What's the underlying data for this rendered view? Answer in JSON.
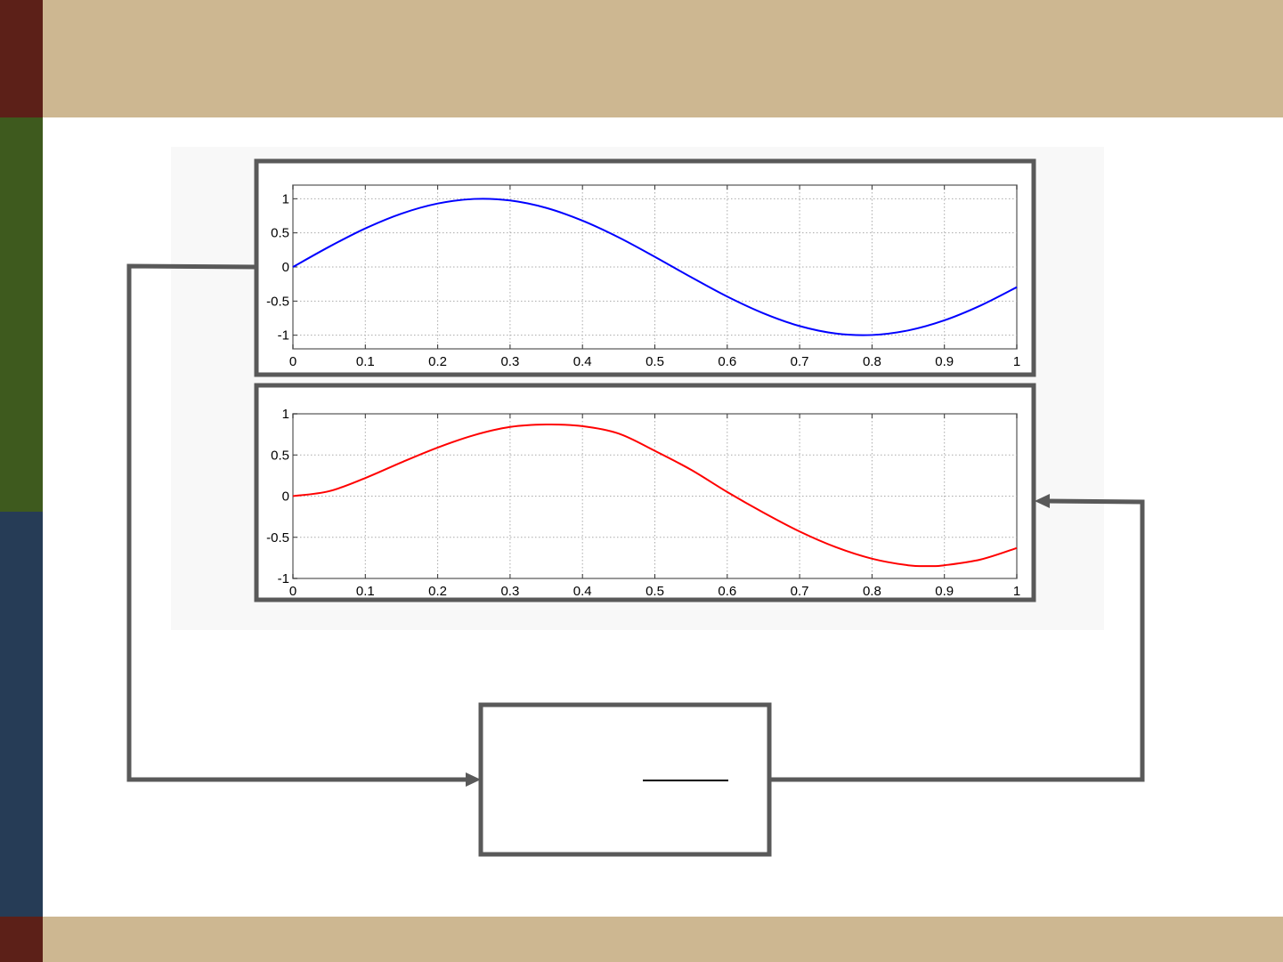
{
  "theme": {
    "band_color": "#CDB791",
    "side_colors": [
      "#5C2018",
      "#3E5A1E",
      "#263C56",
      "#5C2018"
    ],
    "frame_color": "#595959"
  },
  "chart_data": [
    {
      "type": "line",
      "grid": true,
      "xlim": [
        0,
        1
      ],
      "ylim": [
        -1.2,
        1.2
      ],
      "x_ticks": [
        "0",
        "0.1",
        "0.2",
        "0.3",
        "0.4",
        "0.5",
        "0.6",
        "0.7",
        "0.8",
        "0.9",
        "1"
      ],
      "y_ticks": [
        "1",
        "0.5",
        "0",
        "-0.5",
        "-1"
      ],
      "series": [
        {
          "color": "#0000FF",
          "x": [
            0,
            0.05,
            0.1,
            0.15,
            0.2,
            0.25,
            0.3,
            0.35,
            0.4,
            0.45,
            0.5,
            0.55,
            0.6,
            0.65,
            0.7,
            0.75,
            0.8,
            0.85,
            0.9,
            0.95,
            1
          ],
          "y": [
            0,
            0.296,
            0.565,
            0.782,
            0.93,
            0.997,
            0.975,
            0.866,
            0.679,
            0.434,
            0.149,
            -0.149,
            -0.434,
            -0.679,
            -0.866,
            -0.975,
            -0.997,
            -0.93,
            -0.782,
            -0.565,
            -0.296
          ]
        }
      ]
    },
    {
      "type": "line",
      "grid": true,
      "xlim": [
        0,
        1
      ],
      "ylim": [
        -1,
        1
      ],
      "x_ticks": [
        "0",
        "0.1",
        "0.2",
        "0.3",
        "0.4",
        "0.5",
        "0.6",
        "0.7",
        "0.8",
        "0.9",
        "1"
      ],
      "y_ticks": [
        "1",
        "0.5",
        "0",
        "-0.5",
        "-1"
      ],
      "series": [
        {
          "color": "#FF0000",
          "x": [
            0,
            0.05,
            0.1,
            0.15,
            0.2,
            0.25,
            0.3,
            0.35,
            0.4,
            0.45,
            0.5,
            0.55,
            0.6,
            0.65,
            0.7,
            0.75,
            0.8,
            0.85,
            0.88,
            0.9,
            0.95,
            1
          ],
          "y": [
            0,
            0.06,
            0.22,
            0.41,
            0.59,
            0.74,
            0.84,
            0.87,
            0.85,
            0.76,
            0.55,
            0.32,
            0.05,
            -0.2,
            -0.43,
            -0.62,
            -0.76,
            -0.84,
            -0.85,
            -0.84,
            -0.77,
            -0.63
          ]
        }
      ]
    }
  ]
}
